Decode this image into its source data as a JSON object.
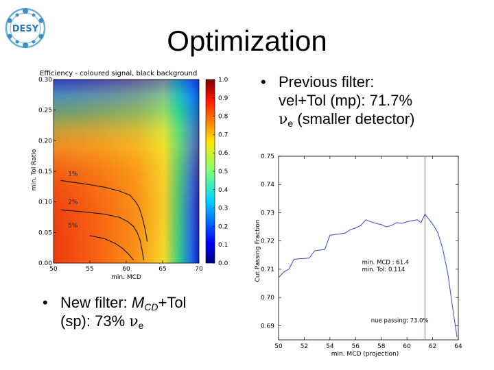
{
  "slide": {
    "title": "Optimization",
    "logo_text": "DESY",
    "bullets": {
      "previous": {
        "marker": "•",
        "line1": "Previous filter:",
        "line2": "vel+Tol (mp): 71.7%",
        "nu": "ν",
        "nu_sub": "e",
        "line3_rest": " (smaller detector)"
      },
      "new": {
        "marker": "•",
        "prefix": "New filter: ",
        "m": "M",
        "m_sub": "CD",
        "suffix": "+Tol",
        "line2_start": "(sp): 73% ",
        "nu": "ν",
        "nu_sub": "e"
      }
    }
  },
  "chart_data": [
    {
      "type": "heatmap",
      "title": "Efficiency - coloured signal, black background",
      "xlabel": "min. MCD",
      "ylabel": "min. Tol Ratio",
      "xlim": [
        50,
        70
      ],
      "ylim": [
        0,
        0.3
      ],
      "x_ticks": [
        "50",
        "55",
        "60",
        "65",
        "70"
      ],
      "y_ticks": [
        "0.00",
        "0.05",
        "0.10",
        "0.15",
        "0.20",
        "0.25",
        "0.30"
      ],
      "colorbar_ticks": [
        "0.0",
        "0.1",
        "0.2",
        "0.3",
        "0.4",
        "0.5",
        "0.6",
        "0.7",
        "0.8",
        "0.9",
        "1.0"
      ],
      "colorbar_range": [
        0,
        1
      ],
      "colormap": "jet",
      "contours": [
        {
          "label": "1%",
          "label_at": [
            52,
            0.143
          ],
          "points": [
            [
              51,
              0.135
            ],
            [
              54,
              0.13
            ],
            [
              57,
              0.124
            ],
            [
              59,
              0.118
            ],
            [
              60.5,
              0.111
            ],
            [
              61.3,
              0.1
            ],
            [
              61.8,
              0.09
            ],
            [
              62.2,
              0.075
            ],
            [
              62.6,
              0.055
            ],
            [
              62.9,
              0.035
            ]
          ]
        },
        {
          "label": "2%",
          "label_at": [
            52,
            0.097
          ],
          "points": [
            [
              51,
              0.087
            ],
            [
              54,
              0.084
            ],
            [
              57,
              0.08
            ],
            [
              59,
              0.075
            ],
            [
              60.2,
              0.068
            ],
            [
              61,
              0.06
            ],
            [
              61.5,
              0.05
            ],
            [
              61.9,
              0.038
            ],
            [
              62.2,
              0.02
            ],
            [
              62.4,
              0.005
            ]
          ]
        },
        {
          "label": "5%",
          "label_at": [
            52,
            0.058
          ],
          "points": [
            [
              55,
              0.045
            ],
            [
              57,
              0.04
            ],
            [
              58.5,
              0.032
            ],
            [
              59.5,
              0.024
            ],
            [
              60.3,
              0.015
            ],
            [
              61,
              0.005
            ]
          ]
        }
      ]
    },
    {
      "type": "line",
      "xlabel": "min. MCD (projection)",
      "ylabel": "Cut Passing Fraction",
      "xlim": [
        50,
        64
      ],
      "ylim": [
        0.685,
        0.75
      ],
      "x_ticks": [
        "50",
        "52",
        "54",
        "56",
        "58",
        "60",
        "62",
        "64"
      ],
      "y_ticks": [
        "0.69",
        "0.70",
        "0.71",
        "0.72",
        "0.73",
        "0.74",
        "0.75"
      ],
      "vline_x": 61.4,
      "vline_color": "#d9534f",
      "line_color": "#4455cc",
      "annotations": [
        "min. MCD : 61.4",
        "min. Tol: 0.114",
        "nue passing: 73.0%"
      ],
      "x": [
        50,
        50.4,
        50.8,
        51.2,
        51.6,
        52,
        52.4,
        52.8,
        53.2,
        53.6,
        54,
        54.4,
        54.8,
        55.2,
        55.6,
        56,
        56.4,
        56.8,
        57.2,
        57.6,
        58,
        58.4,
        58.8,
        59.2,
        59.6,
        60,
        60.4,
        60.8,
        61.1,
        61.4,
        61.6,
        62,
        62.4,
        62.8,
        63.2,
        63.6,
        63.9
      ],
      "y": [
        0.707,
        0.709,
        0.71,
        0.7135,
        0.7137,
        0.7138,
        0.714,
        0.7165,
        0.7168,
        0.717,
        0.722,
        0.7223,
        0.7225,
        0.7228,
        0.724,
        0.7246,
        0.7255,
        0.7275,
        0.7268,
        0.7262,
        0.7258,
        0.725,
        0.7255,
        0.7265,
        0.7262,
        0.7268,
        0.7272,
        0.7275,
        0.7265,
        0.7295,
        0.7283,
        0.726,
        0.723,
        0.717,
        0.708,
        0.695,
        0.686
      ]
    }
  ]
}
